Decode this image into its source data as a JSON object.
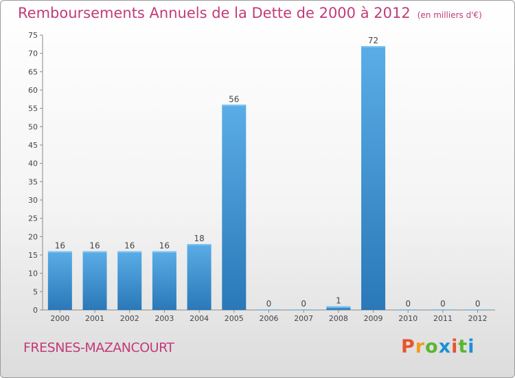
{
  "title": "Remboursements Annuels de la Dette de 2000 à 2012",
  "unit": "(en milliers d'€)",
  "commune": "FRESNES-MAZANCOURT",
  "brand": "Proxiti",
  "colors": {
    "title": "#c23a7a",
    "bar_top": "#5aade6",
    "bar_bottom": "#2a78b8",
    "brand_letters": [
      "#e8542c",
      "#f29a1f",
      "#5bb531",
      "#1e8fd6",
      "#e8542c",
      "#5bb531",
      "#1e8fd6"
    ]
  },
  "chart_data": {
    "type": "bar",
    "title": "Remboursements Annuels de la Dette de 2000 à 2012",
    "categories": [
      "2000",
      "2001",
      "2002",
      "2003",
      "2004",
      "2005",
      "2006",
      "2007",
      "2008",
      "2009",
      "2010",
      "2011",
      "2012"
    ],
    "values": [
      16,
      16,
      16,
      16,
      18,
      56,
      0,
      0,
      1,
      72,
      0,
      0,
      0
    ],
    "ylim": [
      0,
      75
    ],
    "yticks": [
      0,
      5,
      10,
      15,
      20,
      25,
      30,
      35,
      40,
      45,
      50,
      55,
      60,
      65,
      70,
      75
    ],
    "xlabel": "",
    "ylabel": "",
    "grid": false,
    "data_labels": true
  }
}
